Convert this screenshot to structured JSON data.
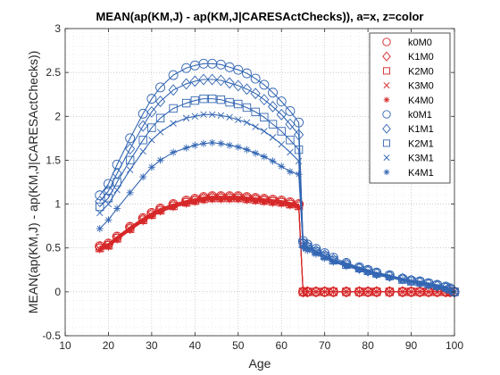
{
  "chart_data": {
    "type": "scatter",
    "title": "MEAN(ap(KM,J) - ap(KM,J|CARESActChecks)), a=x, z=color",
    "xlabel": "Age",
    "ylabel": "MEAN(ap(KM,J) - ap(KM,J|CARESActChecks))",
    "xlim": [
      10,
      100
    ],
    "ylim": [
      -0.5,
      3
    ],
    "xticks": [
      10,
      20,
      30,
      40,
      50,
      60,
      70,
      80,
      90,
      100
    ],
    "yticks": [
      -0.5,
      0,
      0.5,
      1,
      1.5,
      2,
      2.5,
      3
    ],
    "xtick_labels": [
      "10",
      "20",
      "30",
      "40",
      "50",
      "60",
      "70",
      "80",
      "90",
      "100"
    ],
    "ytick_labels": [
      "-0.5",
      "0",
      "0.5",
      "1",
      "1.5",
      "2",
      "2.5",
      "3"
    ],
    "grid": "major and minor dotted",
    "legend_position": "top-right",
    "x": [
      18,
      20,
      22,
      25,
      28,
      30,
      32,
      35,
      38,
      40,
      42,
      44,
      46,
      48,
      50,
      52,
      54,
      56,
      58,
      60,
      62,
      64,
      65,
      66,
      68,
      70,
      72,
      75,
      78,
      80,
      82,
      85,
      88,
      90,
      92,
      94,
      96,
      98,
      99,
      100
    ],
    "series": [
      {
        "name": "k0M0",
        "marker": "circle",
        "color": "#d62728",
        "values": [
          0.52,
          0.55,
          0.63,
          0.74,
          0.84,
          0.9,
          0.95,
          1.0,
          1.04,
          1.06,
          1.08,
          1.09,
          1.09,
          1.09,
          1.09,
          1.08,
          1.07,
          1.06,
          1.05,
          1.04,
          1.02,
          1.0,
          0.0,
          0.0,
          0.0,
          0.0,
          0.0,
          0.0,
          0.0,
          0.0,
          0.0,
          0.0,
          0.0,
          0.0,
          0.0,
          0.0,
          0.0,
          0.0,
          0.0,
          0.0
        ]
      },
      {
        "name": "K1M0",
        "marker": "diamond",
        "color": "#d62728",
        "values": [
          0.51,
          0.54,
          0.62,
          0.73,
          0.83,
          0.89,
          0.94,
          0.99,
          1.03,
          1.05,
          1.07,
          1.08,
          1.08,
          1.08,
          1.08,
          1.07,
          1.06,
          1.05,
          1.04,
          1.03,
          1.01,
          0.99,
          0.0,
          0.0,
          0.0,
          0.0,
          0.0,
          0.0,
          0.0,
          0.0,
          0.0,
          0.0,
          0.0,
          0.0,
          0.0,
          0.0,
          0.0,
          0.0,
          0.0,
          0.0
        ]
      },
      {
        "name": "K2M0",
        "marker": "square",
        "color": "#d62728",
        "values": [
          0.5,
          0.53,
          0.61,
          0.72,
          0.82,
          0.88,
          0.93,
          0.98,
          1.02,
          1.04,
          1.06,
          1.07,
          1.07,
          1.07,
          1.07,
          1.06,
          1.05,
          1.04,
          1.03,
          1.02,
          1.0,
          0.98,
          0.0,
          0.0,
          0.0,
          0.0,
          0.0,
          0.0,
          0.0,
          0.0,
          0.0,
          0.0,
          0.0,
          0.0,
          0.0,
          0.0,
          0.0,
          0.0,
          0.0,
          0.0
        ]
      },
      {
        "name": "K3M0",
        "marker": "x",
        "color": "#d62728",
        "values": [
          0.49,
          0.52,
          0.6,
          0.71,
          0.81,
          0.87,
          0.92,
          0.97,
          1.01,
          1.03,
          1.05,
          1.06,
          1.06,
          1.06,
          1.06,
          1.05,
          1.04,
          1.03,
          1.02,
          1.01,
          0.99,
          0.97,
          0.0,
          0.0,
          0.0,
          0.0,
          0.0,
          0.0,
          0.0,
          0.0,
          0.0,
          0.0,
          0.0,
          0.0,
          0.0,
          0.0,
          0.0,
          0.0,
          0.0,
          0.0
        ]
      },
      {
        "name": "K4M0",
        "marker": "asterisk",
        "color": "#d62728",
        "values": [
          0.48,
          0.51,
          0.59,
          0.7,
          0.8,
          0.86,
          0.91,
          0.96,
          1.0,
          1.02,
          1.04,
          1.05,
          1.05,
          1.05,
          1.05,
          1.04,
          1.03,
          1.02,
          1.01,
          1.0,
          0.98,
          0.96,
          0.0,
          0.0,
          0.0,
          0.0,
          0.0,
          0.0,
          0.0,
          0.0,
          0.0,
          0.0,
          0.0,
          0.0,
          0.0,
          0.0,
          0.0,
          0.0,
          0.0,
          0.0
        ]
      },
      {
        "name": "k0M1",
        "marker": "circle",
        "color": "#3366b3",
        "values": [
          1.1,
          1.23,
          1.45,
          1.75,
          2.03,
          2.2,
          2.33,
          2.47,
          2.55,
          2.58,
          2.6,
          2.6,
          2.59,
          2.56,
          2.53,
          2.49,
          2.43,
          2.36,
          2.27,
          2.17,
          2.06,
          1.93,
          0.58,
          0.54,
          0.49,
          0.44,
          0.39,
          0.33,
          0.28,
          0.25,
          0.22,
          0.19,
          0.15,
          0.13,
          0.12,
          0.1,
          0.08,
          0.06,
          0.04,
          0.0
        ]
      },
      {
        "name": "K1M1",
        "marker": "diamond",
        "color": "#3366b3",
        "values": [
          1.03,
          1.15,
          1.35,
          1.63,
          1.89,
          2.05,
          2.17,
          2.3,
          2.37,
          2.4,
          2.42,
          2.42,
          2.41,
          2.38,
          2.35,
          2.31,
          2.26,
          2.19,
          2.11,
          2.02,
          1.91,
          1.79,
          0.56,
          0.52,
          0.47,
          0.42,
          0.37,
          0.32,
          0.27,
          0.24,
          0.21,
          0.18,
          0.15,
          0.13,
          0.11,
          0.09,
          0.07,
          0.05,
          0.03,
          0.0
        ]
      },
      {
        "name": "K2M1",
        "marker": "square",
        "color": "#3366b3",
        "values": [
          0.97,
          1.07,
          1.25,
          1.5,
          1.73,
          1.87,
          1.98,
          2.09,
          2.15,
          2.18,
          2.2,
          2.2,
          2.19,
          2.16,
          2.14,
          2.1,
          2.05,
          1.99,
          1.91,
          1.83,
          1.73,
          1.62,
          0.55,
          0.51,
          0.46,
          0.41,
          0.36,
          0.31,
          0.27,
          0.24,
          0.21,
          0.18,
          0.14,
          0.12,
          0.11,
          0.09,
          0.07,
          0.05,
          0.03,
          0.0
        ]
      },
      {
        "name": "K3M1",
        "marker": "x",
        "color": "#3366b3",
        "values": [
          0.9,
          1.0,
          1.16,
          1.39,
          1.6,
          1.73,
          1.82,
          1.92,
          1.98,
          2.0,
          2.02,
          2.02,
          2.01,
          1.99,
          1.96,
          1.93,
          1.88,
          1.83,
          1.76,
          1.68,
          1.59,
          1.49,
          0.54,
          0.5,
          0.45,
          0.4,
          0.35,
          0.3,
          0.26,
          0.23,
          0.2,
          0.17,
          0.14,
          0.12,
          0.1,
          0.08,
          0.06,
          0.04,
          0.02,
          0.0
        ]
      },
      {
        "name": "K4M1",
        "marker": "asterisk",
        "color": "#3366b3",
        "values": [
          0.72,
          0.82,
          0.95,
          1.13,
          1.31,
          1.42,
          1.5,
          1.59,
          1.64,
          1.67,
          1.69,
          1.7,
          1.69,
          1.67,
          1.65,
          1.62,
          1.58,
          1.54,
          1.49,
          1.43,
          1.37,
          1.34,
          0.5,
          0.47,
          0.43,
          0.38,
          0.34,
          0.29,
          0.25,
          0.22,
          0.19,
          0.16,
          0.13,
          0.11,
          0.09,
          0.07,
          0.05,
          0.03,
          0.02,
          0.0
        ]
      }
    ]
  }
}
